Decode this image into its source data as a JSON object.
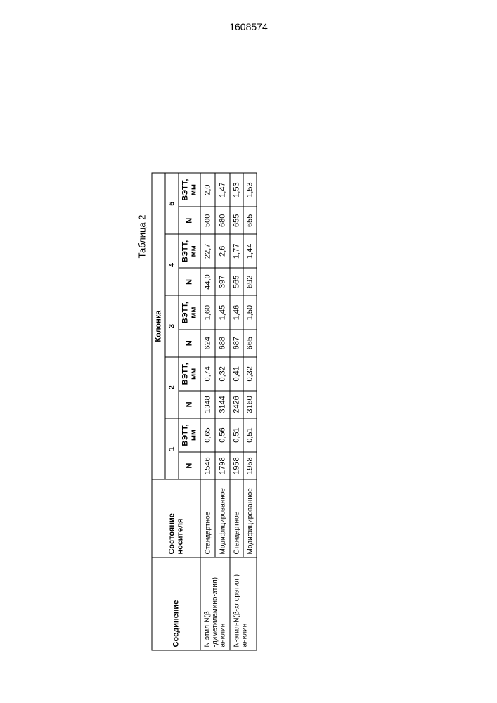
{
  "page_number": "1608574",
  "table_label": "Таблица 2",
  "headers": {
    "compound": "Соединение",
    "state": "Состояние носителя",
    "group": "Колонка",
    "n": "N",
    "vett": "ВЭТТ, мм",
    "cols": [
      "1",
      "2",
      "3",
      "4",
      "5"
    ]
  },
  "compounds": [
    {
      "name": "N-этил-N(β -диметиламино-этил) анилин",
      "rows": [
        {
          "state": "Стандартное",
          "vals": [
            "1546",
            "0,65",
            "1348",
            "0,74",
            "624",
            "1,60",
            "44,0",
            "22,7",
            "500",
            "2,0"
          ]
        },
        {
          "state": "Модифицированное",
          "vals": [
            "1798",
            "0,56",
            "3144",
            "0,32",
            "688",
            "1,45",
            "397",
            "2,6",
            "680",
            "1,47"
          ]
        }
      ]
    },
    {
      "name": "N-этил-N(β-хлорэтил ) анилин",
      "rows": [
        {
          "state": "Стандартное",
          "vals": [
            "1958",
            "0,51",
            "2426",
            "0,41",
            "687",
            "1,46",
            "565",
            "1,77",
            "655",
            "1,53"
          ]
        },
        {
          "state": "Модифицированное",
          "vals": [
            "1958",
            "0,51",
            "3160",
            "0,32",
            "665",
            "1,50",
            "692",
            "1,44",
            "655",
            "1,53"
          ]
        }
      ]
    }
  ]
}
